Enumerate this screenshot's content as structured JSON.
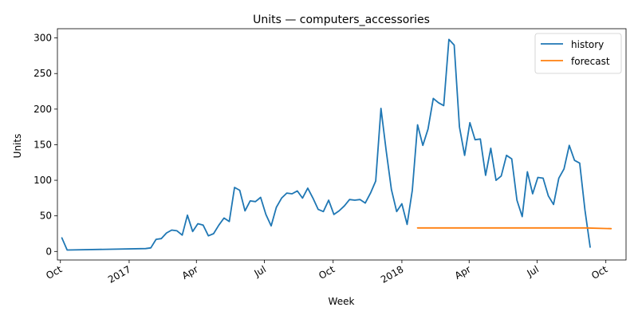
{
  "chart_data": {
    "type": "line",
    "title": "Units — computers_accessories",
    "xlabel": "Week",
    "ylabel": "Units",
    "xlim": [
      "2016-09-27",
      "2018-10-28"
    ],
    "ylim": [
      -12,
      313
    ],
    "grid": false,
    "legend_position": "top-right",
    "x_ticks": [
      {
        "date": "2016-10-01",
        "label": "Oct"
      },
      {
        "date": "2017-01-01",
        "label": "2017"
      },
      {
        "date": "2017-04-01",
        "label": "Apr"
      },
      {
        "date": "2017-07-01",
        "label": "Jul"
      },
      {
        "date": "2017-10-01",
        "label": "Oct"
      },
      {
        "date": "2018-01-01",
        "label": "2018"
      },
      {
        "date": "2018-04-01",
        "label": "Apr"
      },
      {
        "date": "2018-07-01",
        "label": "Jul"
      },
      {
        "date": "2018-10-01",
        "label": "Oct"
      }
    ],
    "y_ticks": [
      0,
      50,
      100,
      150,
      200,
      250,
      300
    ],
    "series": [
      {
        "name": "history",
        "color": "#1f77b4",
        "points": [
          [
            "2016-10-03",
            19
          ],
          [
            "2016-10-10",
            2
          ],
          [
            "2017-01-23",
            4
          ],
          [
            "2017-01-30",
            5
          ],
          [
            "2017-02-06",
            17
          ],
          [
            "2017-02-13",
            18
          ],
          [
            "2017-02-20",
            26
          ],
          [
            "2017-02-27",
            30
          ],
          [
            "2017-03-06",
            29
          ],
          [
            "2017-03-13",
            23
          ],
          [
            "2017-03-20",
            51
          ],
          [
            "2017-03-27",
            28
          ],
          [
            "2017-04-03",
            39
          ],
          [
            "2017-04-10",
            37
          ],
          [
            "2017-04-17",
            22
          ],
          [
            "2017-04-24",
            25
          ],
          [
            "2017-05-01",
            37
          ],
          [
            "2017-05-08",
            47
          ],
          [
            "2017-05-15",
            42
          ],
          [
            "2017-05-22",
            90
          ],
          [
            "2017-05-29",
            86
          ],
          [
            "2017-06-05",
            57
          ],
          [
            "2017-06-12",
            71
          ],
          [
            "2017-06-19",
            70
          ],
          [
            "2017-06-26",
            76
          ],
          [
            "2017-07-03",
            52
          ],
          [
            "2017-07-10",
            36
          ],
          [
            "2017-07-17",
            62
          ],
          [
            "2017-07-24",
            75
          ],
          [
            "2017-07-31",
            82
          ],
          [
            "2017-08-07",
            81
          ],
          [
            "2017-08-14",
            85
          ],
          [
            "2017-08-21",
            75
          ],
          [
            "2017-08-28",
            89
          ],
          [
            "2017-09-04",
            75
          ],
          [
            "2017-09-11",
            59
          ],
          [
            "2017-09-18",
            56
          ],
          [
            "2017-09-25",
            72
          ],
          [
            "2017-10-02",
            52
          ],
          [
            "2017-10-09",
            57
          ],
          [
            "2017-10-16",
            64
          ],
          [
            "2017-10-23",
            73
          ],
          [
            "2017-10-30",
            72
          ],
          [
            "2017-11-06",
            73
          ],
          [
            "2017-11-13",
            68
          ],
          [
            "2017-11-20",
            82
          ],
          [
            "2017-11-27",
            99
          ],
          [
            "2017-12-04",
            201
          ],
          [
            "2017-12-11",
            142
          ],
          [
            "2017-12-18",
            87
          ],
          [
            "2017-12-25",
            56
          ],
          [
            "2018-01-01",
            67
          ],
          [
            "2018-01-08",
            38
          ],
          [
            "2018-01-15",
            86
          ],
          [
            "2018-01-22",
            178
          ],
          [
            "2018-01-29",
            149
          ],
          [
            "2018-02-05",
            172
          ],
          [
            "2018-02-12",
            215
          ],
          [
            "2018-02-19",
            209
          ],
          [
            "2018-02-26",
            205
          ],
          [
            "2018-03-05",
            298
          ],
          [
            "2018-03-12",
            290
          ],
          [
            "2018-03-19",
            175
          ],
          [
            "2018-03-26",
            135
          ],
          [
            "2018-04-02",
            181
          ],
          [
            "2018-04-09",
            157
          ],
          [
            "2018-04-16",
            158
          ],
          [
            "2018-04-23",
            107
          ],
          [
            "2018-04-30",
            145
          ],
          [
            "2018-05-07",
            100
          ],
          [
            "2018-05-14",
            106
          ],
          [
            "2018-05-21",
            135
          ],
          [
            "2018-05-28",
            130
          ],
          [
            "2018-06-04",
            72
          ],
          [
            "2018-06-11",
            49
          ],
          [
            "2018-06-18",
            112
          ],
          [
            "2018-06-25",
            81
          ],
          [
            "2018-07-02",
            104
          ],
          [
            "2018-07-09",
            103
          ],
          [
            "2018-07-16",
            78
          ],
          [
            "2018-07-23",
            66
          ],
          [
            "2018-07-30",
            103
          ],
          [
            "2018-08-06",
            116
          ],
          [
            "2018-08-13",
            149
          ],
          [
            "2018-08-20",
            128
          ],
          [
            "2018-08-27",
            124
          ],
          [
            "2018-09-03",
            58
          ],
          [
            "2018-09-10",
            6
          ]
        ]
      },
      {
        "name": "forecast",
        "color": "#ff7f0e",
        "points": [
          [
            "2018-01-22",
            33
          ],
          [
            "2018-09-03",
            33
          ],
          [
            "2018-10-08",
            32
          ]
        ]
      }
    ]
  }
}
